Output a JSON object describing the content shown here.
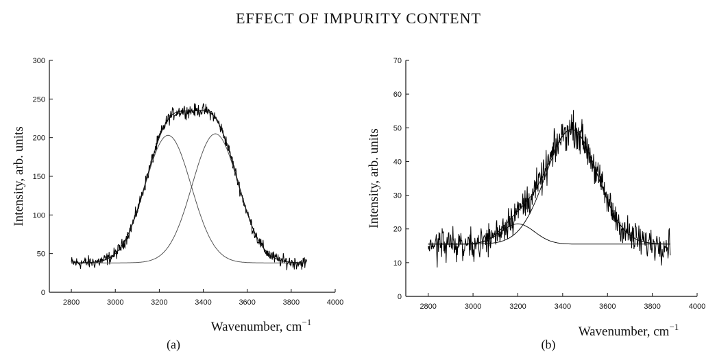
{
  "page": {
    "header": "EFFECT OF IMPURITY CONTENT"
  },
  "chart_data": [
    {
      "panel": "a",
      "type": "line",
      "caption": "(a)",
      "xlabel": "Wavenumber, cm",
      "xlabel_superscript": "−1",
      "ylabel": "Intensity, arb. units",
      "xlim": [
        2700,
        4000
      ],
      "ylim": [
        0,
        300
      ],
      "xticks": [
        2800,
        3000,
        3200,
        3400,
        3600,
        3800,
        4000
      ],
      "yticks": [
        0,
        50,
        100,
        150,
        200,
        250,
        300
      ],
      "x_range": [
        2800,
        3870
      ],
      "noise_amplitude": 6,
      "series": [
        {
          "name": "measured spectrum",
          "style": "noisy"
        },
        {
          "name": "fit (sum)",
          "style": "smooth"
        },
        {
          "name": "component 1",
          "style": "smooth"
        },
        {
          "name": "component 2",
          "style": "smooth"
        }
      ],
      "components": [
        {
          "center": 3240,
          "height": 165,
          "width": 105
        },
        {
          "center": 3455,
          "height": 167,
          "width": 105
        }
      ],
      "baseline": 38
    },
    {
      "panel": "b",
      "type": "line",
      "caption": "(b)",
      "xlabel": "Wavenumber, cm",
      "xlabel_superscript": "−1",
      "ylabel": "Intensity, arb. units",
      "xlim": [
        2700,
        4000
      ],
      "ylim": [
        0,
        70
      ],
      "xticks": [
        2800,
        3000,
        3200,
        3400,
        3600,
        3800,
        4000
      ],
      "yticks": [
        0,
        10,
        20,
        30,
        40,
        50,
        60,
        70
      ],
      "x_range": [
        2800,
        3880
      ],
      "noise_amplitude": 3.5,
      "series": [
        {
          "name": "measured spectrum",
          "style": "noisy"
        },
        {
          "name": "fit (sum)",
          "style": "smooth"
        },
        {
          "name": "component 1",
          "style": "smooth"
        },
        {
          "name": "component 2",
          "style": "smooth"
        }
      ],
      "components": [
        {
          "center": 3200,
          "height": 6,
          "width": 75
        },
        {
          "center": 3440,
          "height": 34,
          "width": 115
        }
      ],
      "baseline": 15.5
    }
  ]
}
